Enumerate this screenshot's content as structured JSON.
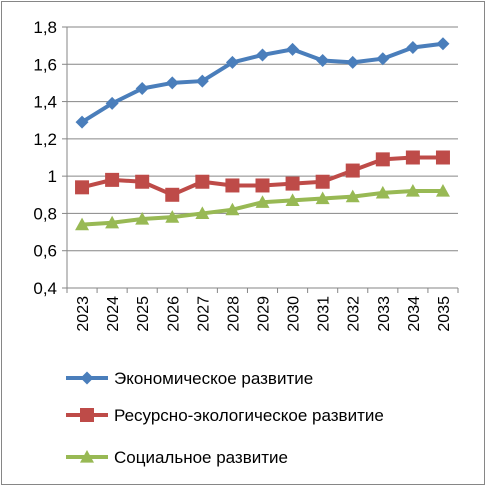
{
  "chart_data": {
    "type": "line",
    "title": "",
    "xlabel": "",
    "ylabel": "",
    "x": [
      "2023",
      "2024",
      "2025",
      "2026",
      "2027",
      "2028",
      "2029",
      "2030",
      "2031",
      "2032",
      "2033",
      "2034",
      "2035"
    ],
    "ylim": [
      0.4,
      1.8
    ],
    "yticks": [
      "0,4",
      "0,6",
      "0,8",
      "1",
      "1,2",
      "1,4",
      "1,6",
      "1,8"
    ],
    "ytick_values": [
      0.4,
      0.6,
      0.8,
      1.0,
      1.2,
      1.4,
      1.6,
      1.8
    ],
    "grid": true,
    "legend_position": "bottom",
    "series": [
      {
        "name": "Экономическое развитие",
        "color": "#4a7ebb",
        "marker": "diamond",
        "values": [
          1.29,
          1.39,
          1.47,
          1.5,
          1.51,
          1.61,
          1.65,
          1.68,
          1.62,
          1.61,
          1.63,
          1.69,
          1.71
        ]
      },
      {
        "name": "Ресурсно-экологическое развитие",
        "color": "#be4b48",
        "marker": "square",
        "values": [
          0.94,
          0.98,
          0.97,
          0.9,
          0.97,
          0.95,
          0.95,
          0.96,
          0.97,
          1.03,
          1.09,
          1.1,
          1.1
        ]
      },
      {
        "name": "Социальное развитие",
        "color": "#98b954",
        "marker": "triangle",
        "values": [
          0.74,
          0.75,
          0.77,
          0.78,
          0.8,
          0.82,
          0.86,
          0.87,
          0.88,
          0.89,
          0.91,
          0.92,
          0.92
        ]
      }
    ]
  }
}
